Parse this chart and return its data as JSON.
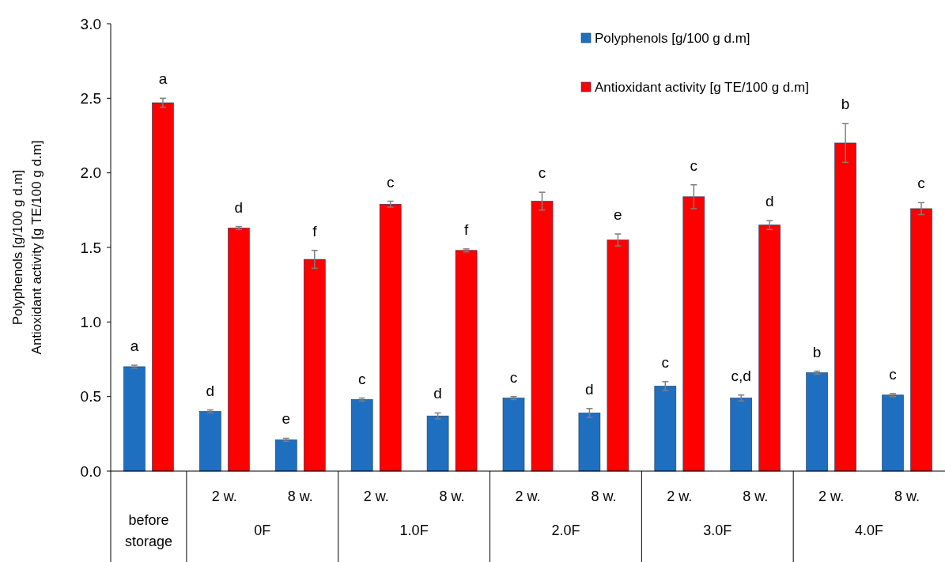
{
  "chart_data": {
    "type": "bar",
    "ylabel": "Polyphenols [g/100 g d.m]\nAntioxidant activity [g TE/100 g d.m]",
    "categories": [
      null,
      "2 w.",
      "8 w.",
      "2 w.",
      "8 w.",
      "2 w.",
      "8 w.",
      "2 w.",
      "8 w.",
      "2 w.",
      "8 w."
    ],
    "annotations": [
      "before storage",
      "0F",
      "1.0F",
      "2.0F",
      "3.0F",
      "4.0F"
    ],
    "series": [
      {
        "name": "Polyphenols [g/100 g d.m]",
        "color": "#1f6fc1",
        "values": [
          0.7,
          0.4,
          0.21,
          0.48,
          0.37,
          0.49,
          0.39,
          0.57,
          0.49,
          0.66,
          0.51
        ],
        "errors": [
          0.01,
          0.01,
          0.01,
          0.01,
          0.02,
          0.01,
          0.03,
          0.03,
          0.02,
          0.01,
          0.01
        ],
        "value_labels": [
          "a",
          "d",
          "e",
          "c",
          "d",
          "c",
          "d",
          "c",
          "c,d",
          "b",
          "c"
        ]
      },
      {
        "name": "Antioxidant activity [g TE/100 g d.m]",
        "color": "#ff0000",
        "values": [
          2.47,
          1.63,
          1.42,
          1.79,
          1.48,
          1.81,
          1.55,
          1.84,
          1.65,
          2.2,
          1.76
        ],
        "errors": [
          0.03,
          0.01,
          0.06,
          0.02,
          0.01,
          0.06,
          0.04,
          0.08,
          0.03,
          0.13,
          0.04
        ],
        "value_labels": [
          "a",
          "d",
          "f",
          "c",
          "f",
          "c",
          "e",
          "c",
          "d",
          "b",
          "c"
        ]
      }
    ],
    "ylim": [
      0,
      3
    ],
    "yticks": [
      {
        "value": 0,
        "label": "0.0"
      },
      {
        "value": 0.5,
        "label": "0.5"
      },
      {
        "value": 1,
        "label": "1.0"
      },
      {
        "value": 1.5,
        "label": "1.5"
      },
      {
        "value": 2,
        "label": "2.0"
      },
      {
        "value": 2.5,
        "label": "2.5"
      },
      {
        "value": 3,
        "label": "3.0"
      }
    ],
    "grid": false,
    "legend": "top right"
  }
}
